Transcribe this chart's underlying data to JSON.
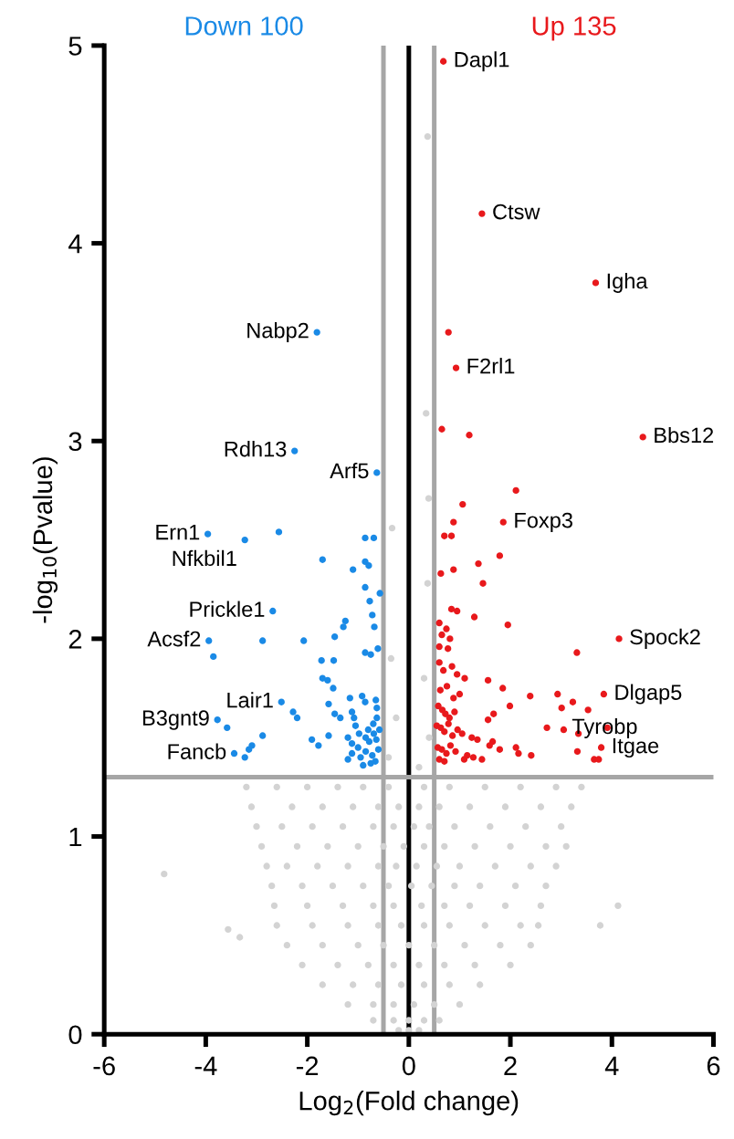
{
  "chart_data": {
    "type": "scatter",
    "xlabel": "Log$_{2}$(Fold change)",
    "ylabel": "-log$_{10}$(Pvalue)",
    "xlim": [
      -6,
      6
    ],
    "ylim": [
      0,
      5
    ],
    "xticks": [
      -6,
      -4,
      -2,
      0,
      2,
      4,
      6
    ],
    "yticks": [
      0,
      1,
      2,
      3,
      4,
      5
    ],
    "grid": false,
    "legend": false,
    "marker": "circle",
    "ref_lines": [
      {
        "axis": "x",
        "value": -0.5,
        "color": "#a6a6a6"
      },
      {
        "axis": "x",
        "value": 0.5,
        "color": "#a6a6a6"
      },
      {
        "axis": "x",
        "value": 0,
        "color": "#000000"
      },
      {
        "axis": "y",
        "value": 1.3,
        "color": "#a6a6a6"
      }
    ],
    "series": [
      {
        "color": "#d3d3d3",
        "x": [
          -3.2,
          -2.6,
          -2.0,
          -1.4,
          -0.9,
          -0.4,
          0.3,
          0.8,
          1.5,
          2.2,
          2.9,
          3.4,
          -3.1,
          -2.3,
          -1.7,
          -1.1,
          -0.6,
          -0.2,
          0.2,
          0.6,
          1.2,
          1.9,
          2.6,
          3.2,
          -3.0,
          -2.5,
          -1.9,
          -1.3,
          -0.7,
          -0.3,
          0.1,
          0.4,
          0.9,
          1.6,
          2.3,
          3.0,
          -2.9,
          -2.2,
          -1.6,
          -1.0,
          -0.5,
          -0.1,
          0.3,
          0.7,
          1.3,
          2.0,
          2.7,
          3.1,
          -2.8,
          -2.4,
          -1.8,
          -1.2,
          -0.6,
          -0.25,
          0.15,
          0.55,
          1.0,
          1.7,
          2.4,
          2.9,
          -2.7,
          -2.1,
          -1.5,
          -0.9,
          -0.4,
          0.05,
          0.45,
          0.9,
          1.4,
          2.1,
          2.7,
          -2.65,
          -2.0,
          -1.3,
          -0.7,
          -0.3,
          0.25,
          0.7,
          1.2,
          1.9,
          2.6,
          -2.6,
          -1.9,
          -1.2,
          -0.6,
          -0.15,
          0.3,
          0.8,
          1.5,
          2.2,
          2.55,
          -2.4,
          -1.7,
          -1.0,
          -0.5,
          0.0,
          0.5,
          1.1,
          1.8,
          2.4,
          -2.1,
          -1.4,
          -0.8,
          -0.3,
          0.2,
          0.7,
          1.3,
          2.0,
          -1.7,
          -1.1,
          -0.6,
          -0.15,
          0.3,
          0.8,
          1.4,
          -1.2,
          -0.7,
          -0.3,
          0.1,
          0.5,
          1.0,
          -0.7,
          -0.3,
          0.0,
          0.3,
          0.6,
          -0.2,
          0.0,
          0.2,
          0.37,
          0.34,
          0.39,
          0.37,
          -0.33,
          -0.35,
          0.3,
          -0.25,
          0.4,
          -0.4,
          0.2,
          -4.82,
          -3.56,
          -3.33,
          4.12,
          3.77
        ],
        "values": [
          1.25,
          1.25,
          1.25,
          1.25,
          1.25,
          1.25,
          1.25,
          1.25,
          1.25,
          1.25,
          1.25,
          1.25,
          1.15,
          1.15,
          1.15,
          1.15,
          1.15,
          1.15,
          1.15,
          1.15,
          1.15,
          1.15,
          1.15,
          1.15,
          1.05,
          1.05,
          1.05,
          1.05,
          1.05,
          1.05,
          1.05,
          1.05,
          1.05,
          1.05,
          1.05,
          1.05,
          0.95,
          0.95,
          0.95,
          0.95,
          0.95,
          0.95,
          0.95,
          0.95,
          0.95,
          0.95,
          0.95,
          0.95,
          0.85,
          0.85,
          0.85,
          0.85,
          0.85,
          0.85,
          0.85,
          0.85,
          0.85,
          0.85,
          0.85,
          0.85,
          0.75,
          0.75,
          0.75,
          0.75,
          0.75,
          0.75,
          0.75,
          0.75,
          0.75,
          0.75,
          0.75,
          0.65,
          0.65,
          0.65,
          0.65,
          0.65,
          0.65,
          0.65,
          0.65,
          0.65,
          0.65,
          0.55,
          0.55,
          0.55,
          0.55,
          0.55,
          0.55,
          0.55,
          0.55,
          0.55,
          0.55,
          0.45,
          0.45,
          0.45,
          0.45,
          0.45,
          0.45,
          0.45,
          0.45,
          0.45,
          0.35,
          0.35,
          0.35,
          0.35,
          0.35,
          0.35,
          0.35,
          0.35,
          0.25,
          0.25,
          0.25,
          0.25,
          0.25,
          0.25,
          0.25,
          0.15,
          0.15,
          0.15,
          0.15,
          0.15,
          0.15,
          0.07,
          0.07,
          0.07,
          0.07,
          0.07,
          0.02,
          0.02,
          0.02,
          4.54,
          3.14,
          2.71,
          2.28,
          2.56,
          1.9,
          1.8,
          1.6,
          1.5,
          1.4,
          1.35,
          0.81,
          0.53,
          0.49,
          0.65,
          0.55
        ]
      },
      {
        "name": "Down 100",
        "color": "#1a8ae6",
        "x": [
          -1.81,
          -2.25,
          -0.63,
          -3.96,
          -3.23,
          -2.56,
          -2.68,
          -3.94,
          -3.85,
          -2.88,
          -2.07,
          -2.51,
          -3.77,
          -3.58,
          -3.44,
          -3.23,
          -3.15,
          -3.09,
          -2.88,
          -2.28,
          -2.2,
          -1.91,
          -1.78,
          -1.58,
          -1.7,
          -1.1,
          -0.86,
          -0.69,
          -0.86,
          -0.79,
          -0.86,
          -0.57,
          -0.77,
          -0.72,
          -0.68,
          -1.25,
          -1.29,
          -1.46,
          -0.86,
          -0.75,
          -0.61,
          -1.72,
          -1.48,
          -1.7,
          -1.6,
          -1.49,
          -1.16,
          -0.92,
          -0.86,
          -0.65,
          -1.58,
          -1.46,
          -1.35,
          -1.12,
          -1.08,
          -0.63,
          -0.63,
          -0.8,
          -0.85,
          -0.78,
          -0.69,
          -0.64,
          -0.58,
          -1.2,
          -1.12,
          -1.0,
          -1.2,
          -1.12,
          -0.95,
          -0.85,
          -0.72,
          -0.6,
          -0.9,
          -0.75,
          -0.66,
          -1.05,
          -0.98,
          -0.7
        ],
        "values": [
          3.55,
          2.95,
          2.84,
          2.53,
          2.5,
          2.54,
          2.14,
          1.99,
          1.91,
          1.99,
          1.99,
          1.68,
          1.59,
          1.55,
          1.42,
          1.4,
          1.44,
          1.46,
          1.51,
          1.63,
          1.6,
          1.49,
          1.46,
          1.51,
          2.4,
          2.35,
          2.51,
          2.51,
          2.39,
          2.37,
          2.26,
          2.23,
          2.19,
          2.12,
          2.06,
          2.09,
          2.06,
          2.01,
          1.93,
          1.92,
          1.95,
          1.89,
          1.89,
          1.8,
          1.79,
          1.75,
          1.7,
          1.71,
          1.68,
          1.69,
          1.67,
          1.62,
          1.6,
          1.63,
          1.6,
          1.65,
          1.6,
          1.54,
          1.5,
          1.48,
          1.52,
          1.49,
          1.54,
          1.5,
          1.47,
          1.45,
          1.39,
          1.42,
          1.4,
          1.43,
          1.41,
          1.44,
          1.36,
          1.37,
          1.38,
          1.56,
          1.52,
          1.57
        ]
      },
      {
        "name": "Up 135",
        "color": "#e8191c",
        "x": [
          0.68,
          1.44,
          3.68,
          0.78,
          0.93,
          0.65,
          1.19,
          4.61,
          2.11,
          1.06,
          1.86,
          0.88,
          0.7,
          0.84,
          1.79,
          1.37,
          0.63,
          0.88,
          1.46,
          0.84,
          0.95,
          1.29,
          1.95,
          4.14,
          3.31,
          0.6,
          0.74,
          0.65,
          0.81,
          0.6,
          0.77,
          1.56,
          1.85,
          2.39,
          2.93,
          3.23,
          3.84,
          3.01,
          3.53,
          3.91,
          2.72,
          3.05,
          3.34,
          3.79,
          3.65,
          3.74,
          3.32,
          1.99,
          1.67,
          1.56,
          2.11,
          2.41,
          2.16,
          1.79,
          1.65,
          1.59,
          1.35,
          1.24,
          1.44,
          1.27,
          1.09,
          0.6,
          0.68,
          0.85,
          0.95,
          1.1,
          0.62,
          0.75,
          0.88,
          1.0,
          0.58,
          0.66,
          0.72,
          0.8,
          0.9,
          0.55,
          0.63,
          0.7,
          0.78,
          0.86,
          0.96,
          1.05,
          0.57,
          0.65,
          0.74,
          0.82,
          0.92,
          1.15,
          0.6,
          0.7
        ],
        "values": [
          4.92,
          4.15,
          3.8,
          3.55,
          3.37,
          3.06,
          3.03,
          3.02,
          2.75,
          2.68,
          2.59,
          2.59,
          2.52,
          2.52,
          2.42,
          2.38,
          2.33,
          2.35,
          2.28,
          2.15,
          2.14,
          2.11,
          2.07,
          2.0,
          1.93,
          2.08,
          2.05,
          2.02,
          2.0,
          1.96,
          1.95,
          1.79,
          1.75,
          1.71,
          1.72,
          1.68,
          1.72,
          1.65,
          1.64,
          1.55,
          1.55,
          1.54,
          1.52,
          1.45,
          1.39,
          1.39,
          1.43,
          1.66,
          1.62,
          1.59,
          1.45,
          1.41,
          1.42,
          1.44,
          1.48,
          1.46,
          1.49,
          1.5,
          1.39,
          1.4,
          1.39,
          1.88,
          1.84,
          1.86,
          1.82,
          1.8,
          1.74,
          1.76,
          1.7,
          1.72,
          1.66,
          1.64,
          1.62,
          1.6,
          1.63,
          1.56,
          1.55,
          1.53,
          1.57,
          1.51,
          1.54,
          1.52,
          1.45,
          1.44,
          1.42,
          1.46,
          1.43,
          1.41,
          1.39,
          1.38
        ]
      }
    ],
    "annotations": [
      {
        "text": "Nabp2",
        "x": -1.81,
        "y": 3.55
      },
      {
        "text": "Rdh13",
        "x": -2.25,
        "y": 2.95
      },
      {
        "text": "Arf5",
        "x": -0.63,
        "y": 2.84
      },
      {
        "text": "Ern1",
        "x": -3.96,
        "y": 2.53
      },
      {
        "text": "Nfkbil1",
        "x": -3.23,
        "y": 2.5
      },
      {
        "text": "Prickle1",
        "x": -2.68,
        "y": 2.14
      },
      {
        "text": "Acsf2",
        "x": -3.94,
        "y": 1.99
      },
      {
        "text": "Lair1",
        "x": -2.51,
        "y": 1.68
      },
      {
        "text": "B3gnt9",
        "x": -3.77,
        "y": 1.59
      },
      {
        "text": "Fancb",
        "x": -3.44,
        "y": 1.42
      },
      {
        "text": "Dapl1",
        "x": 0.68,
        "y": 4.92
      },
      {
        "text": "Ctsw",
        "x": 1.44,
        "y": 4.15
      },
      {
        "text": "Igha",
        "x": 3.68,
        "y": 3.8
      },
      {
        "text": "F2rl1",
        "x": 0.93,
        "y": 3.37
      },
      {
        "text": "Bbs12",
        "x": 4.61,
        "y": 3.02
      },
      {
        "text": "Foxp3",
        "x": 1.86,
        "y": 2.59
      },
      {
        "text": "Spock2",
        "x": 4.14,
        "y": 2.0
      },
      {
        "text": "Dlgap5",
        "x": 3.84,
        "y": 1.72
      },
      {
        "text": "Tyrobp",
        "x": 3.01,
        "y": 1.65
      },
      {
        "text": "Itgae",
        "x": 3.79,
        "y": 1.45
      }
    ]
  }
}
